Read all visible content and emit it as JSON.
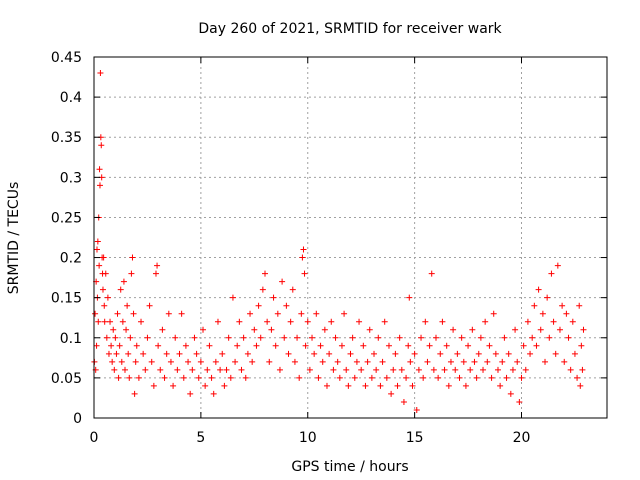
{
  "chart_data": {
    "type": "scatter",
    "title": "Day 260 of 2021, SRMTID for receiver wark",
    "xlabel": "GPS time / hours",
    "ylabel": "SRMTID / TECUs",
    "xlim": [
      0,
      24
    ],
    "ylim": [
      0,
      0.45
    ],
    "xticks": [
      0,
      5,
      10,
      15,
      20
    ],
    "xtick_labels": [
      "0",
      "5",
      "10",
      "15",
      "20"
    ],
    "yticks": [
      0,
      0.05,
      0.1,
      0.15,
      0.2,
      0.25,
      0.3,
      0.35,
      0.4,
      0.45
    ],
    "ytick_labels": [
      "0",
      "0.05",
      "0.1",
      "0.15",
      "0.2",
      "0.25",
      "0.3",
      "0.35",
      "0.4",
      "0.45"
    ],
    "grid": true,
    "marker": "+",
    "color": "#ff0000",
    "series": [
      {
        "name": "SRMTID",
        "points": [
          [
            0.02,
            0.07
          ],
          [
            0.05,
            0.13
          ],
          [
            0.08,
            0.06
          ],
          [
            0.1,
            0.17
          ],
          [
            0.12,
            0.09
          ],
          [
            0.14,
            0.21
          ],
          [
            0.16,
            0.15
          ],
          [
            0.18,
            0.22
          ],
          [
            0.2,
            0.12
          ],
          [
            0.22,
            0.25
          ],
          [
            0.24,
            0.19
          ],
          [
            0.26,
            0.31
          ],
          [
            0.28,
            0.29
          ],
          [
            0.3,
            0.43
          ],
          [
            0.32,
            0.35
          ],
          [
            0.34,
            0.34
          ],
          [
            0.36,
            0.3
          ],
          [
            0.38,
            0.2
          ],
          [
            0.4,
            0.18
          ],
          [
            0.42,
            0.16
          ],
          [
            0.45,
            0.2
          ],
          [
            0.48,
            0.14
          ],
          [
            0.5,
            0.12
          ],
          [
            0.55,
            0.18
          ],
          [
            0.6,
            0.1
          ],
          [
            0.65,
            0.15
          ],
          [
            0.7,
            0.08
          ],
          [
            0.75,
            0.12
          ],
          [
            0.8,
            0.09
          ],
          [
            0.85,
            0.07
          ],
          [
            0.9,
            0.11
          ],
          [
            0.95,
            0.06
          ],
          [
            1.0,
            0.1
          ],
          [
            1.05,
            0.08
          ],
          [
            1.1,
            0.13
          ],
          [
            1.15,
            0.05
          ],
          [
            1.2,
            0.09
          ],
          [
            1.25,
            0.16
          ],
          [
            1.3,
            0.07
          ],
          [
            1.35,
            0.12
          ],
          [
            1.4,
            0.17
          ],
          [
            1.45,
            0.06
          ],
          [
            1.5,
            0.11
          ],
          [
            1.55,
            0.14
          ],
          [
            1.6,
            0.08
          ],
          [
            1.65,
            0.05
          ],
          [
            1.7,
            0.1
          ],
          [
            1.75,
            0.18
          ],
          [
            1.8,
            0.2
          ],
          [
            1.85,
            0.13
          ],
          [
            1.9,
            0.03
          ],
          [
            1.95,
            0.07
          ],
          [
            2.0,
            0.09
          ],
          [
            2.1,
            0.05
          ],
          [
            2.2,
            0.12
          ],
          [
            2.3,
            0.08
          ],
          [
            2.4,
            0.06
          ],
          [
            2.5,
            0.1
          ],
          [
            2.6,
            0.14
          ],
          [
            2.7,
            0.07
          ],
          [
            2.8,
            0.04
          ],
          [
            2.9,
            0.18
          ],
          [
            2.95,
            0.19
          ],
          [
            3.0,
            0.09
          ],
          [
            3.1,
            0.06
          ],
          [
            3.2,
            0.11
          ],
          [
            3.3,
            0.05
          ],
          [
            3.4,
            0.08
          ],
          [
            3.5,
            0.13
          ],
          [
            3.6,
            0.07
          ],
          [
            3.7,
            0.04
          ],
          [
            3.8,
            0.1
          ],
          [
            3.9,
            0.06
          ],
          [
            4.0,
            0.08
          ],
          [
            4.1,
            0.13
          ],
          [
            4.2,
            0.05
          ],
          [
            4.3,
            0.09
          ],
          [
            4.4,
            0.07
          ],
          [
            4.5,
            0.03
          ],
          [
            4.6,
            0.06
          ],
          [
            4.7,
            0.1
          ],
          [
            4.8,
            0.08
          ],
          [
            4.9,
            0.05
          ],
          [
            5.0,
            0.07
          ],
          [
            5.1,
            0.11
          ],
          [
            5.2,
            0.04
          ],
          [
            5.3,
            0.06
          ],
          [
            5.4,
            0.09
          ],
          [
            5.5,
            0.05
          ],
          [
            5.6,
            0.03
          ],
          [
            5.7,
            0.07
          ],
          [
            5.8,
            0.12
          ],
          [
            5.9,
            0.06
          ],
          [
            6.0,
            0.08
          ],
          [
            6.1,
            0.04
          ],
          [
            6.2,
            0.06
          ],
          [
            6.3,
            0.1
          ],
          [
            6.4,
            0.05
          ],
          [
            6.5,
            0.15
          ],
          [
            6.6,
            0.07
          ],
          [
            6.7,
            0.09
          ],
          [
            6.8,
            0.12
          ],
          [
            6.9,
            0.06
          ],
          [
            7.0,
            0.1
          ],
          [
            7.1,
            0.05
          ],
          [
            7.2,
            0.08
          ],
          [
            7.3,
            0.13
          ],
          [
            7.4,
            0.07
          ],
          [
            7.5,
            0.11
          ],
          [
            7.6,
            0.09
          ],
          [
            7.7,
            0.14
          ],
          [
            7.8,
            0.1
          ],
          [
            7.9,
            0.16
          ],
          [
            8.0,
            0.18
          ],
          [
            8.1,
            0.12
          ],
          [
            8.2,
            0.07
          ],
          [
            8.3,
            0.11
          ],
          [
            8.4,
            0.15
          ],
          [
            8.5,
            0.09
          ],
          [
            8.6,
            0.13
          ],
          [
            8.7,
            0.06
          ],
          [
            8.8,
            0.17
          ],
          [
            8.9,
            0.1
          ],
          [
            9.0,
            0.14
          ],
          [
            9.1,
            0.08
          ],
          [
            9.2,
            0.12
          ],
          [
            9.3,
            0.16
          ],
          [
            9.4,
            0.07
          ],
          [
            9.5,
            0.1
          ],
          [
            9.6,
            0.05
          ],
          [
            9.7,
            0.13
          ],
          [
            9.75,
            0.2
          ],
          [
            9.8,
            0.21
          ],
          [
            9.85,
            0.18
          ],
          [
            9.9,
            0.09
          ],
          [
            10.0,
            0.12
          ],
          [
            10.1,
            0.06
          ],
          [
            10.2,
            0.1
          ],
          [
            10.3,
            0.08
          ],
          [
            10.4,
            0.13
          ],
          [
            10.5,
            0.05
          ],
          [
            10.6,
            0.09
          ],
          [
            10.7,
            0.07
          ],
          [
            10.8,
            0.11
          ],
          [
            10.9,
            0.04
          ],
          [
            11.0,
            0.08
          ],
          [
            11.1,
            0.12
          ],
          [
            11.2,
            0.06
          ],
          [
            11.3,
            0.1
          ],
          [
            11.4,
            0.07
          ],
          [
            11.5,
            0.05
          ],
          [
            11.6,
            0.09
          ],
          [
            11.7,
            0.13
          ],
          [
            11.8,
            0.06
          ],
          [
            11.9,
            0.04
          ],
          [
            12.0,
            0.08
          ],
          [
            12.1,
            0.1
          ],
          [
            12.2,
            0.05
          ],
          [
            12.3,
            0.07
          ],
          [
            12.4,
            0.12
          ],
          [
            12.5,
            0.06
          ],
          [
            12.6,
            0.09
          ],
          [
            12.7,
            0.04
          ],
          [
            12.8,
            0.07
          ],
          [
            12.9,
            0.11
          ],
          [
            13.0,
            0.05
          ],
          [
            13.1,
            0.08
          ],
          [
            13.2,
            0.06
          ],
          [
            13.3,
            0.1
          ],
          [
            13.4,
            0.04
          ],
          [
            13.5,
            0.07
          ],
          [
            13.6,
            0.12
          ],
          [
            13.7,
            0.05
          ],
          [
            13.8,
            0.09
          ],
          [
            13.9,
            0.03
          ],
          [
            14.0,
            0.06
          ],
          [
            14.1,
            0.08
          ],
          [
            14.2,
            0.04
          ],
          [
            14.3,
            0.1
          ],
          [
            14.4,
            0.06
          ],
          [
            14.5,
            0.02
          ],
          [
            14.6,
            0.05
          ],
          [
            14.7,
            0.09
          ],
          [
            14.75,
            0.15
          ],
          [
            14.8,
            0.07
          ],
          [
            14.9,
            0.04
          ],
          [
            15.0,
            0.08
          ],
          [
            15.1,
            0.01
          ],
          [
            15.2,
            0.06
          ],
          [
            15.3,
            0.1
          ],
          [
            15.4,
            0.05
          ],
          [
            15.5,
            0.12
          ],
          [
            15.6,
            0.07
          ],
          [
            15.7,
            0.09
          ],
          [
            15.8,
            0.18
          ],
          [
            15.9,
            0.06
          ],
          [
            16.0,
            0.1
          ],
          [
            16.1,
            0.05
          ],
          [
            16.2,
            0.08
          ],
          [
            16.3,
            0.12
          ],
          [
            16.4,
            0.06
          ],
          [
            16.5,
            0.09
          ],
          [
            16.6,
            0.04
          ],
          [
            16.7,
            0.07
          ],
          [
            16.8,
            0.11
          ],
          [
            16.9,
            0.06
          ],
          [
            17.0,
            0.08
          ],
          [
            17.1,
            0.05
          ],
          [
            17.2,
            0.1
          ],
          [
            17.3,
            0.07
          ],
          [
            17.4,
            0.04
          ],
          [
            17.5,
            0.09
          ],
          [
            17.6,
            0.06
          ],
          [
            17.7,
            0.11
          ],
          [
            17.8,
            0.07
          ],
          [
            17.9,
            0.05
          ],
          [
            18.0,
            0.08
          ],
          [
            18.1,
            0.1
          ],
          [
            18.2,
            0.06
          ],
          [
            18.3,
            0.12
          ],
          [
            18.4,
            0.07
          ],
          [
            18.5,
            0.09
          ],
          [
            18.6,
            0.05
          ],
          [
            18.7,
            0.13
          ],
          [
            18.8,
            0.08
          ],
          [
            18.9,
            0.06
          ],
          [
            19.0,
            0.04
          ],
          [
            19.1,
            0.07
          ],
          [
            19.2,
            0.1
          ],
          [
            19.3,
            0.05
          ],
          [
            19.4,
            0.08
          ],
          [
            19.5,
            0.03
          ],
          [
            19.6,
            0.06
          ],
          [
            19.7,
            0.11
          ],
          [
            19.8,
            0.07
          ],
          [
            19.9,
            0.02
          ],
          [
            20.0,
            0.05
          ],
          [
            20.1,
            0.09
          ],
          [
            20.2,
            0.06
          ],
          [
            20.3,
            0.12
          ],
          [
            20.4,
            0.08
          ],
          [
            20.5,
            0.1
          ],
          [
            20.6,
            0.14
          ],
          [
            20.7,
            0.09
          ],
          [
            20.8,
            0.16
          ],
          [
            20.9,
            0.11
          ],
          [
            21.0,
            0.13
          ],
          [
            21.1,
            0.07
          ],
          [
            21.2,
            0.15
          ],
          [
            21.3,
            0.1
          ],
          [
            21.4,
            0.18
          ],
          [
            21.5,
            0.12
          ],
          [
            21.6,
            0.08
          ],
          [
            21.7,
            0.19
          ],
          [
            21.8,
            0.11
          ],
          [
            21.9,
            0.14
          ],
          [
            22.0,
            0.07
          ],
          [
            22.1,
            0.13
          ],
          [
            22.2,
            0.1
          ],
          [
            22.3,
            0.06
          ],
          [
            22.4,
            0.12
          ],
          [
            22.5,
            0.08
          ],
          [
            22.6,
            0.05
          ],
          [
            22.7,
            0.14
          ],
          [
            22.75,
            0.04
          ],
          [
            22.8,
            0.09
          ],
          [
            22.85,
            0.06
          ],
          [
            22.9,
            0.11
          ]
        ]
      }
    ]
  }
}
